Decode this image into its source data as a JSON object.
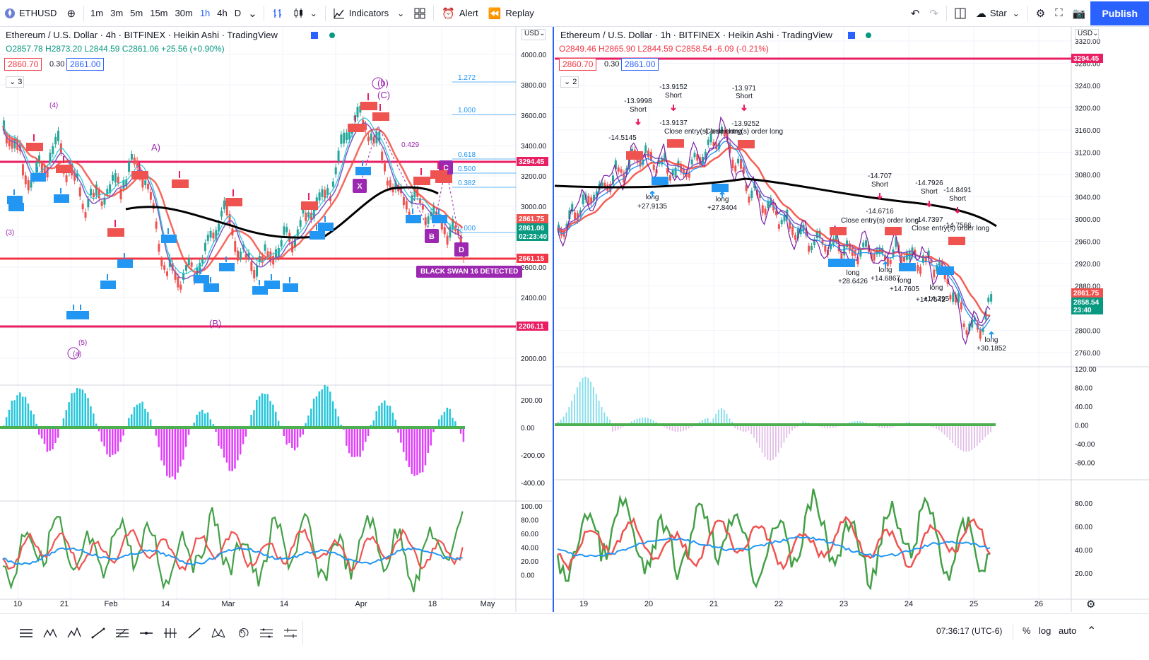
{
  "toolbar": {
    "symbol": "ETHUSD",
    "intervals": [
      "1m",
      "3m",
      "5m",
      "15m",
      "30m",
      "1h",
      "4h",
      "D"
    ],
    "active_interval": "1h",
    "indicators_label": "Indicators",
    "alert_label": "Alert",
    "replay_label": "Replay",
    "star_label": "Star",
    "publish_label": "Publish"
  },
  "left": {
    "title": "Ethereum / U.S. Dollar · 4h · BITFINEX · Heikin Ashi · TradingView",
    "ohlc": "O2857.78 H2873.20 L2844.59 C2861.06 +25.56 (+0.90%)",
    "sell_price": "2860.70",
    "spread": "0.30",
    "buy_price": "2861.00",
    "layout_num": "3",
    "currency": "USD",
    "price_axis": [
      "4000.00",
      "3800.00",
      "3600.00",
      "3400.00",
      "3200.00",
      "3000.00",
      "2800.00",
      "2600.00",
      "2400.00",
      "2200.00",
      "2000.00"
    ],
    "price_tags": [
      {
        "text": "3294.45",
        "color": "#e91e63"
      },
      {
        "text": "2861.75",
        "color": "#ef5350"
      },
      {
        "text": "2861.06",
        "color": "#089981"
      },
      {
        "text": "02:23:40",
        "color": "#089981"
      },
      {
        "text": "2661.15",
        "color": "#f23645"
      },
      {
        "text": "2206.11",
        "color": "#e91e63"
      }
    ],
    "fib_levels": [
      "1.272",
      "1.000",
      "0.618",
      "0.500",
      "0.382",
      "0.000"
    ],
    "wave_labels": [
      "(4)",
      "(3)",
      "A)",
      "(b)",
      "(C)",
      "(B)",
      "(a)",
      "(5)",
      "0.429"
    ],
    "pattern_labels": [
      "X",
      "B",
      "C",
      "D"
    ],
    "black_swan": "BLACK SWAN 16 DETECTED",
    "osc1_axis": [
      "200.00",
      "0.00",
      "-200.00",
      "-400.00"
    ],
    "osc2_axis": [
      "100.00",
      "80.00",
      "60.00",
      "40.00",
      "20.00",
      "0.00"
    ],
    "time_axis": [
      "10",
      "21",
      "Feb",
      "14",
      "Mar",
      "14",
      "Apr",
      "18",
      "May"
    ]
  },
  "right": {
    "title": "Ethereum / U.S. Dollar · 1h · BITFINEX · Heikin Ashi · TradingView",
    "ohlc": "O2849.46 H2865.90 L2844.59 C2858.54 -6.09 (-0.21%)",
    "sell_price": "2860.70",
    "spread": "0.30",
    "buy_price": "2861.00",
    "layout_num": "2",
    "currency": "USD",
    "price_axis": [
      "3320.00",
      "3280.00",
      "3240.00",
      "3200.00",
      "3160.00",
      "3120.00",
      "3080.00",
      "3040.00",
      "3000.00",
      "2960.00",
      "2920.00",
      "2880.00",
      "2840.00",
      "2800.00",
      "2760.00"
    ],
    "price_tags": [
      {
        "text": "3294.45",
        "color": "#e91e63"
      },
      {
        "text": "2861.75",
        "color": "#ef5350"
      },
      {
        "text": "2858.54",
        "color": "#089981"
      },
      {
        "text": "23:40",
        "color": "#089981"
      }
    ],
    "annotations": [
      "-13.9998",
      "Short",
      "-13.9152",
      "Short",
      "-13.971",
      "Short",
      "-13.9137",
      "-13.9252",
      "Close entry(s) order long",
      "-14.5145",
      "long",
      "+27.9135",
      "long",
      "+27.8404",
      "-14.707",
      "Short",
      "-14.7926",
      "Short",
      "-14.8491",
      "Short",
      "-14.6716",
      "-14.7397",
      "-14.7566",
      "long",
      "+28.6426",
      "long",
      "+14.6867",
      "long",
      "+14.7605",
      "long",
      "+14.795",
      "+14.7542",
      "long",
      "+30.1852"
    ],
    "osc1_axis": [
      "120.00",
      "80.00",
      "40.00",
      "0.00",
      "-40.00",
      "-80.00"
    ],
    "osc2_axis": [
      "80.00",
      "60.00",
      "40.00",
      "20.00"
    ],
    "time_axis": [
      "19",
      "20",
      "21",
      "22",
      "23",
      "24",
      "25",
      "26"
    ]
  },
  "bottom": {
    "clock": "07:36:17 (UTC-6)",
    "percent": "%",
    "log": "log",
    "auto": "auto"
  }
}
